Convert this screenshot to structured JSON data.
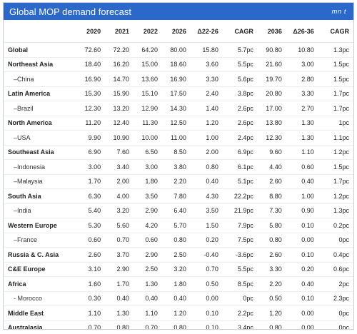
{
  "title": "Global MOP demand forecast",
  "unit": "mn t",
  "columns": [
    "",
    "2020",
    "2021",
    "2022",
    "2026",
    "Δ22-26",
    "CAGR",
    "2036",
    "Δ26-36",
    "CAGR"
  ],
  "rows": [
    {
      "label": "Global",
      "sub": false,
      "values": [
        "72.60",
        "72.20",
        "64.20",
        "80.00",
        "15.80",
        "5.7pc",
        "90.80",
        "10.80",
        "1.3pc"
      ]
    },
    {
      "label": "Northeast Asia",
      "sub": false,
      "values": [
        "18.40",
        "16.20",
        "15.00",
        "18.60",
        "3.60",
        "5.5pc",
        "21.60",
        "3.00",
        "1.5pc"
      ]
    },
    {
      "label": "–China",
      "sub": true,
      "values": [
        "16.90",
        "14.70",
        "13.60",
        "16.90",
        "3.30",
        "5.6pc",
        "19.70",
        "2.80",
        "1.5pc"
      ]
    },
    {
      "label": "Latin America",
      "sub": false,
      "values": [
        "15.30",
        "15.90",
        "15.10",
        "17.50",
        "2.40",
        "3.8pc",
        "20.80",
        "3.30",
        "1.7pc"
      ]
    },
    {
      "label": "–Brazil",
      "sub": true,
      "values": [
        "12.30",
        "13.20",
        "12.90",
        "14.30",
        "1.40",
        "2.6pc",
        "17.00",
        "2.70",
        "1.7pc"
      ]
    },
    {
      "label": "North America",
      "sub": false,
      "values": [
        "11.20",
        "12.40",
        "11.30",
        "12.50",
        "1.20",
        "2.6pc",
        "13.80",
        "1.30",
        "1pc"
      ]
    },
    {
      "label": "–USA",
      "sub": true,
      "values": [
        "9.90",
        "10.90",
        "10.00",
        "11.00",
        "1.00",
        "2.4pc",
        "12.30",
        "1.30",
        "1.1pc"
      ]
    },
    {
      "label": "Southeast Asia",
      "sub": false,
      "values": [
        "6.90",
        "7.60",
        "6.50",
        "8.50",
        "2.00",
        "6.9pc",
        "9.60",
        "1.10",
        "1.2pc"
      ]
    },
    {
      "label": "–Indonesia",
      "sub": true,
      "values": [
        "3.00",
        "3.40",
        "3.00",
        "3.80",
        "0.80",
        "6.1pc",
        "4.40",
        "0.60",
        "1.5pc"
      ]
    },
    {
      "label": "–Malaysia",
      "sub": true,
      "values": [
        "1.70",
        "2.00",
        "1.80",
        "2.20",
        "0.40",
        "5.1pc",
        "2.60",
        "0.40",
        "1.7pc"
      ]
    },
    {
      "label": "South Asia",
      "sub": false,
      "values": [
        "6.30",
        "4.00",
        "3.50",
        "7.80",
        "4.30",
        "22.2pc",
        "8.80",
        "1.00",
        "1.2pc"
      ]
    },
    {
      "label": "–India",
      "sub": true,
      "values": [
        "5.40",
        "3.20",
        "2.90",
        "6.40",
        "3.50",
        "21.9pc",
        "7.30",
        "0.90",
        "1.3pc"
      ]
    },
    {
      "label": "Western Europe",
      "sub": false,
      "values": [
        "5.30",
        "5.60",
        "4.20",
        "5.70",
        "1.50",
        "7.9pc",
        "5.80",
        "0.10",
        "0.2pc"
      ]
    },
    {
      "label": "–France",
      "sub": true,
      "values": [
        "0.60",
        "0.70",
        "0.60",
        "0.80",
        "0.20",
        "7.5pc",
        "0.80",
        "0.00",
        "0pc"
      ]
    },
    {
      "label": "Russia & C. Asia",
      "sub": false,
      "values": [
        "2.60",
        "3.70",
        "2.90",
        "2.50",
        "-0.40",
        "-3.6pc",
        "2.60",
        "0.10",
        "0.4pc"
      ]
    },
    {
      "label": "C&E Europe",
      "sub": false,
      "values": [
        "3.10",
        "2.90",
        "2.50",
        "3.20",
        "0.70",
        "5.5pc",
        "3.30",
        "0.20",
        "0.6pc"
      ]
    },
    {
      "label": "Africa",
      "sub": false,
      "values": [
        "1.60",
        "1.70",
        "1.30",
        "1.80",
        "0.50",
        "8.5pc",
        "2.20",
        "0.40",
        "2pc"
      ]
    },
    {
      "label": "- Morocco",
      "sub": true,
      "values": [
        "0.30",
        "0.40",
        "0.40",
        "0.40",
        "0.00",
        "0pc",
        "0.50",
        "0.10",
        "2.3pc"
      ]
    },
    {
      "label": "Middle East",
      "sub": false,
      "values": [
        "1.10",
        "1.30",
        "1.10",
        "1.20",
        "0.10",
        "2.2pc",
        "1.20",
        "0.00",
        "0pc"
      ]
    },
    {
      "label": "Australasia",
      "sub": false,
      "values": [
        "0.70",
        "0.80",
        "0.70",
        "0.80",
        "0.10",
        "3.4pc",
        "0.80",
        "0.00",
        "0pc"
      ]
    }
  ],
  "colors": {
    "title_bar": "#2b68c9",
    "title_text": "#ffffff",
    "rule": "#eceef1"
  }
}
